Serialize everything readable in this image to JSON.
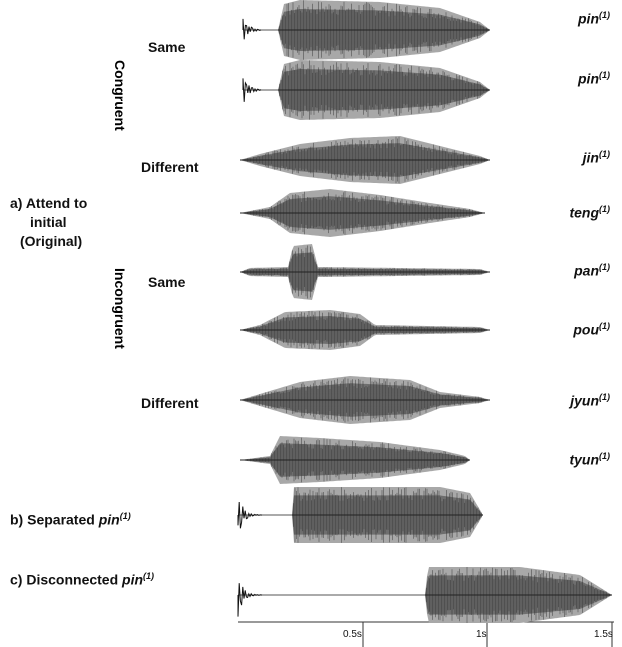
{
  "groups": [
    {
      "name": "Congruent",
      "conditions": [
        "Same",
        "Different"
      ]
    },
    {
      "name": "Incongruent",
      "conditions": [
        "Same",
        "Different"
      ]
    }
  ],
  "section_a": {
    "lines": [
      "a) Attend to",
      "initial",
      "(Original)"
    ]
  },
  "stimuli": [
    {
      "word": "pin",
      "sup": "(1)"
    },
    {
      "word": "pin",
      "sup": "(1)"
    },
    {
      "word": "jin",
      "sup": "(1)"
    },
    {
      "word": "teng",
      "sup": "(1)"
    },
    {
      "word": "pan",
      "sup": "(1)"
    },
    {
      "word": "pou",
      "sup": "(1)"
    },
    {
      "word": "jyun",
      "sup": "(1)"
    },
    {
      "word": "tyun",
      "sup": "(1)"
    }
  ],
  "section_b": {
    "label": "b) Separated",
    "word": "pin",
    "sup": "(1)"
  },
  "section_c": {
    "label": "c) Disconnected",
    "word": "pin",
    "sup": "(1)"
  },
  "axis": {
    "ticks": [
      "0.5s",
      "1s",
      "1.5s"
    ]
  }
}
